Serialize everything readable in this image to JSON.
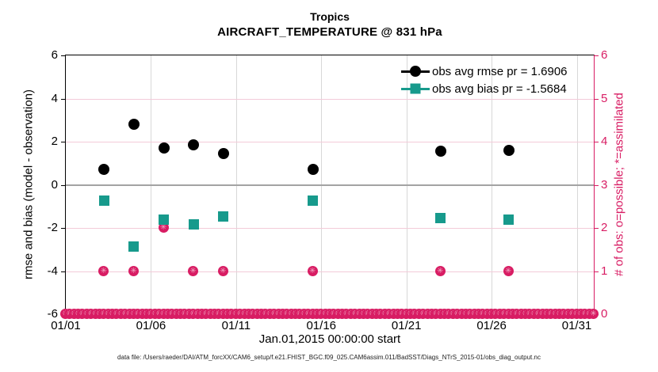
{
  "title": "Tropics",
  "subtitle": "AIRCRAFT_TEMPERATURE @ 831 hPa",
  "footer": "data file: /Users/raeder/DAI/ATM_forcXX/CAM6_setup/f.e21.FHIST_BGC.f09_025.CAM6assim.011/BadSST/Diags_NTrS_2015-01/obs_diag_output.nc",
  "colors": {
    "rmse": "#000000",
    "bias": "#179a8c",
    "obs_pink": "#d81c63",
    "obs_asterisk": "rgba(255,255,255,0.62)",
    "grid_pink": "#f3cbd9",
    "grid_gray": "#d8d8d8",
    "zero_line": "#a3a3a3",
    "spine_black": "#000000"
  },
  "legend": {
    "rmse_label": "obs avg rmse pr = 1.6906",
    "bias_label": "obs avg bias pr = -1.5684"
  },
  "chart_data": {
    "type": "scatter",
    "title": "Tropics",
    "subtitle": "AIRCRAFT_TEMPERATURE @ 831 hPa",
    "xlabel": "Jan.01,2015 00:00:00 start",
    "ylabel_left": "rmse and bias (model - observation)",
    "ylabel_right": "# of obs: o=possible; *=assimilated",
    "x_range_days": [
      0,
      31
    ],
    "x_ticks": [
      {
        "day": 0,
        "label": "01/01"
      },
      {
        "day": 5,
        "label": "01/06"
      },
      {
        "day": 10,
        "label": "01/11"
      },
      {
        "day": 15,
        "label": "01/16"
      },
      {
        "day": 20,
        "label": "01/21"
      },
      {
        "day": 25,
        "label": "01/26"
      },
      {
        "day": 30,
        "label": "01/31"
      }
    ],
    "ylim_left": [
      -6,
      6
    ],
    "y_ticks_left": [
      6,
      4,
      2,
      0,
      -2,
      -4,
      -6
    ],
    "ylim_right": [
      0,
      6
    ],
    "y_ticks_right": [
      6,
      5,
      4,
      3,
      2,
      1,
      0
    ],
    "grid": {
      "vertical_days": [
        5,
        10,
        15,
        20,
        25,
        30
      ],
      "horizontal_right_values": [
        1,
        2,
        3,
        4,
        5
      ],
      "zero_line_left_value": 0
    },
    "legend_position": "top-right-inside",
    "series": [
      {
        "name": "obs avg rmse pr = 1.6906",
        "axis": "left",
        "marker": "circle",
        "color": "#000000",
        "x_days": [
          2.25,
          4.0,
          5.75,
          7.5,
          9.25,
          14.5,
          22.0,
          26.0
        ],
        "values": [
          0.7,
          2.8,
          1.7,
          1.85,
          1.45,
          0.7,
          1.55,
          1.6
        ]
      },
      {
        "name": "obs avg bias pr = -1.5684",
        "axis": "left",
        "marker": "square",
        "color": "#179a8c",
        "x_days": [
          2.25,
          4.0,
          5.75,
          7.5,
          9.25,
          14.5,
          22.0,
          26.0
        ],
        "values": [
          -0.75,
          -2.85,
          -1.6,
          -1.85,
          -1.45,
          -0.75,
          -1.55,
          -1.6
        ]
      },
      {
        "name": "# of obs possible (o) and assimilated (*)",
        "axis": "right",
        "marker": "circle-asterisk",
        "glyph": "✳",
        "color": "#d81c63",
        "x_days": [
          2.25,
          4.0,
          5.75,
          7.5,
          9.25,
          14.5,
          22.0,
          26.0
        ],
        "values": [
          1,
          1,
          2,
          1,
          1,
          1,
          1,
          1
        ]
      },
      {
        "name": "# of obs zero band",
        "axis": "right",
        "marker": "circle-asterisk",
        "glyph": "✳",
        "color": "#d81c63",
        "band": {
          "start_day": 0,
          "end_day": 31,
          "step_days": 0.25,
          "value": 0
        }
      }
    ]
  }
}
